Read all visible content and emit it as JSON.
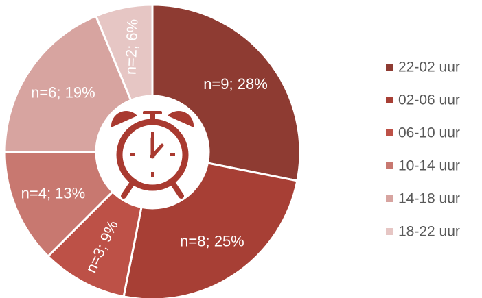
{
  "chart_data": {
    "type": "pie",
    "variant": "donut",
    "title": "",
    "legend_position": "right",
    "center_icon": "alarm-clock-icon",
    "slices": [
      {
        "category": "22-02 uur",
        "n": 9,
        "percent": 28,
        "label": "n=9; 28%",
        "color": "#8e3b32"
      },
      {
        "category": "02-06 uur",
        "n": 8,
        "percent": 25,
        "label": "n=8; 25%",
        "color": "#a73f35"
      },
      {
        "category": "06-10 uur",
        "n": 3,
        "percent": 9,
        "label": "n=3; 9%",
        "color": "#bd5147"
      },
      {
        "category": "10-14 uur",
        "n": 4,
        "percent": 13,
        "label": "n=4; 13%",
        "color": "#c87870"
      },
      {
        "category": "14-18 uur",
        "n": 6,
        "percent": 19,
        "label": "n=6; 19%",
        "color": "#d7a4a0"
      },
      {
        "category": "18-22 uur",
        "n": 2,
        "percent": 6,
        "label": "n=2; 6%",
        "color": "#e6c6c4"
      }
    ]
  },
  "colors": {
    "icon": "#a93a30",
    "separator": "#ffffff",
    "legend_text": "#595959"
  }
}
